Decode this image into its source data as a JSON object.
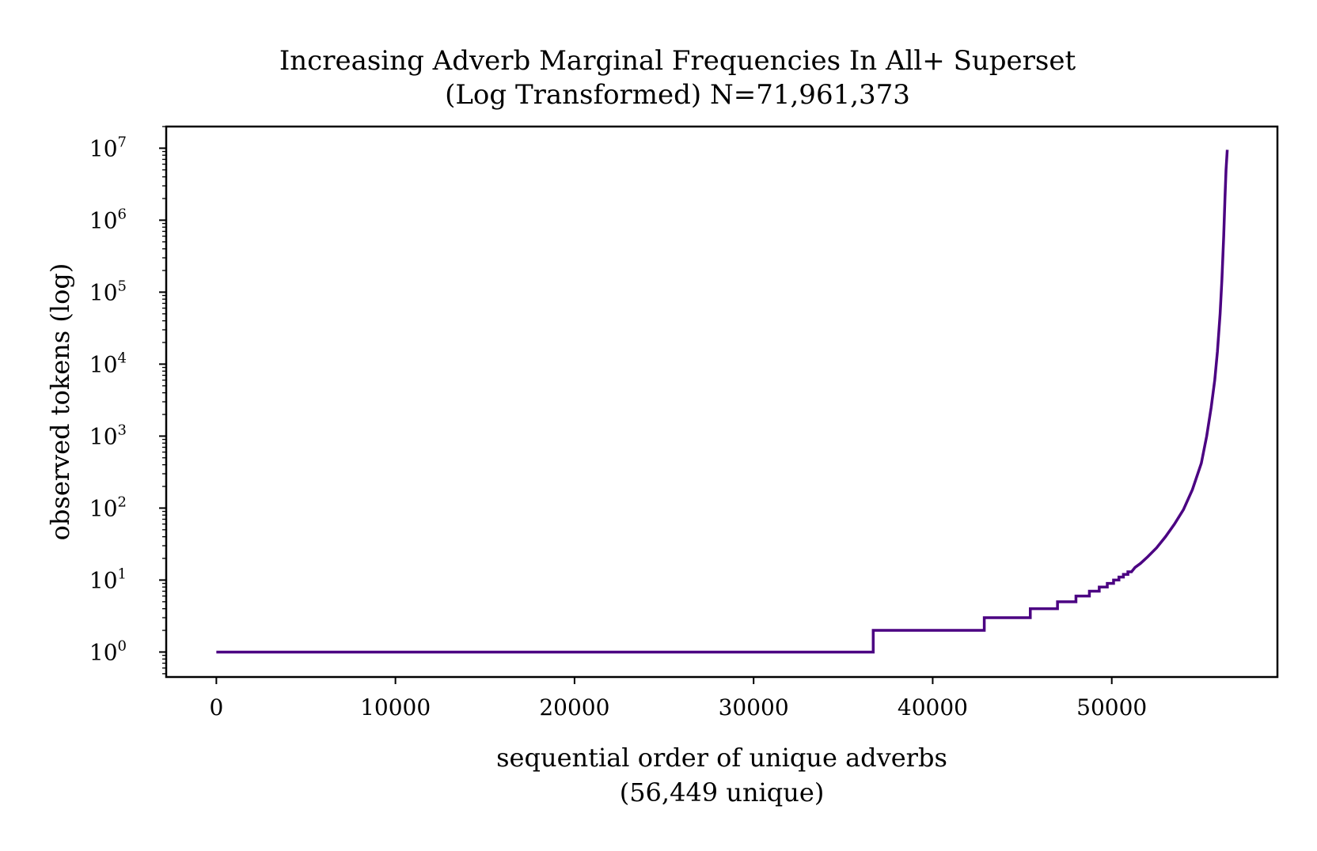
{
  "chart_data": {
    "type": "line",
    "title_line1": "Increasing Adverb Marginal Frequencies In All+ Superset",
    "title_line2": "(Log Transformed) N=71,961,373",
    "xlabel_line1": "sequential order of unique adverbs",
    "xlabel_line2": "(56,449 unique)",
    "ylabel": "observed tokens (log)",
    "y_scale": "log",
    "xlim": [
      -2800,
      59250
    ],
    "ylim": [
      0.45,
      20000000
    ],
    "grid": false,
    "legend": "none",
    "line_color": "#4b0082",
    "x_ticks": [
      {
        "value": 0,
        "label": "0"
      },
      {
        "value": 10000,
        "label": "10000"
      },
      {
        "value": 20000,
        "label": "20000"
      },
      {
        "value": 30000,
        "label": "30000"
      },
      {
        "value": 40000,
        "label": "40000"
      },
      {
        "value": 50000,
        "label": "50000"
      }
    ],
    "y_ticks": [
      {
        "value": 1,
        "base": "10",
        "exp": "0"
      },
      {
        "value": 10,
        "base": "10",
        "exp": "1"
      },
      {
        "value": 100,
        "base": "10",
        "exp": "2"
      },
      {
        "value": 1000,
        "base": "10",
        "exp": "3"
      },
      {
        "value": 10000,
        "base": "10",
        "exp": "4"
      },
      {
        "value": 100000,
        "base": "10",
        "exp": "5"
      },
      {
        "value": 1000000,
        "base": "10",
        "exp": "6"
      },
      {
        "value": 10000000,
        "base": "10",
        "exp": "7"
      }
    ],
    "series": [
      {
        "points": [
          [
            0,
            1
          ],
          [
            36680,
            1
          ],
          [
            36680,
            2
          ],
          [
            42880,
            2
          ],
          [
            42880,
            3
          ],
          [
            45450,
            3
          ],
          [
            45450,
            4
          ],
          [
            46970,
            4
          ],
          [
            46970,
            5
          ],
          [
            48000,
            5
          ],
          [
            48000,
            6
          ],
          [
            48750,
            6
          ],
          [
            48750,
            7
          ],
          [
            49300,
            7
          ],
          [
            49300,
            8
          ],
          [
            49750,
            8
          ],
          [
            49750,
            9
          ],
          [
            50100,
            9
          ],
          [
            50100,
            10
          ],
          [
            50400,
            10
          ],
          [
            50400,
            11
          ],
          [
            50650,
            11
          ],
          [
            50650,
            12
          ],
          [
            50900,
            12
          ],
          [
            50900,
            13
          ],
          [
            51100,
            13
          ],
          [
            51300,
            15
          ],
          [
            51600,
            17
          ],
          [
            52000,
            21
          ],
          [
            52500,
            28
          ],
          [
            53000,
            40
          ],
          [
            53500,
            60
          ],
          [
            54000,
            95
          ],
          [
            54500,
            180
          ],
          [
            55000,
            420
          ],
          [
            55300,
            1000
          ],
          [
            55550,
            2500
          ],
          [
            55750,
            6000
          ],
          [
            55900,
            15000
          ],
          [
            56050,
            50000
          ],
          [
            56150,
            150000
          ],
          [
            56250,
            600000
          ],
          [
            56320,
            2000000
          ],
          [
            56380,
            5000000
          ],
          [
            56449,
            9500000
          ]
        ]
      }
    ]
  }
}
